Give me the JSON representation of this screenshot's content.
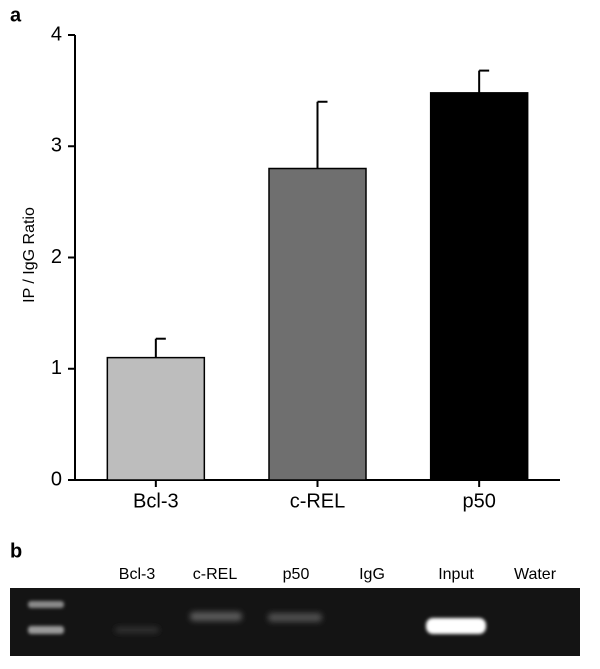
{
  "panel_labels": [
    "a",
    "b"
  ],
  "chart_data": {
    "type": "bar",
    "y_label": "IP / IgG Ratio",
    "categories": [
      "Bcl-3",
      "c-REL",
      "p50"
    ],
    "values": [
      1.1,
      2.8,
      3.48
    ],
    "errors": [
      0.17,
      0.6,
      0.2
    ],
    "colors": [
      "#bdbdbd",
      "#6f6f6f",
      "#000000"
    ],
    "ylim": [
      0,
      4
    ],
    "yticks": [
      0,
      1,
      2,
      3,
      4
    ],
    "grid": false
  },
  "gel": {
    "lanes": [
      "Bcl-3",
      "c-REL",
      "p50",
      "IgG",
      "Input",
      "Water"
    ]
  }
}
